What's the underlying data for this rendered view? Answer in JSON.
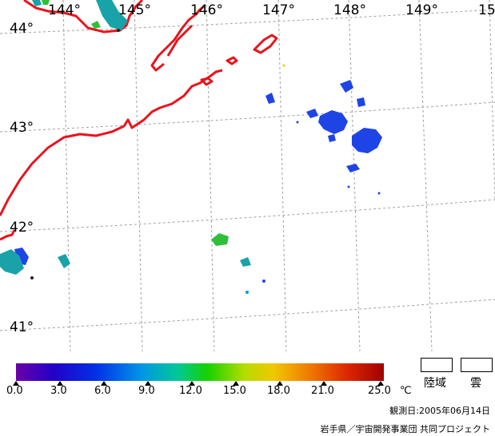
{
  "map": {
    "lon_labels": [
      "144°",
      "145°",
      "146°",
      "147°",
      "148°",
      "149°",
      "15"
    ],
    "lat_labels": [
      "44°",
      "43°",
      "42°",
      "41°"
    ],
    "colors": {
      "coastline": "#e8141c",
      "grid": "#a0a0a0",
      "warm_patch": "#1f44e6",
      "cool_patch": "#19a3a8",
      "green_patch": "#2fbf3a"
    }
  },
  "colorbar": {
    "tick_labels": [
      "0.0",
      "3.0",
      "6.0",
      "9.0",
      "12.0",
      "15.0",
      "18.0",
      "21.0",
      "25.0"
    ],
    "unit": "℃",
    "colors": [
      "#6a00a8",
      "#2400c8",
      "#0032e6",
      "#0096e6",
      "#00c896",
      "#14d200",
      "#b4dc00",
      "#f0c800",
      "#f07800",
      "#dc2800",
      "#a00000"
    ]
  },
  "legend": {
    "land_label": "陸域",
    "cloud_label": "雲"
  },
  "footer": {
    "observation_date": "観測日:2005年06月14日",
    "credit": "岩手県／宇宙開発事業団 共同プロジェクト"
  }
}
